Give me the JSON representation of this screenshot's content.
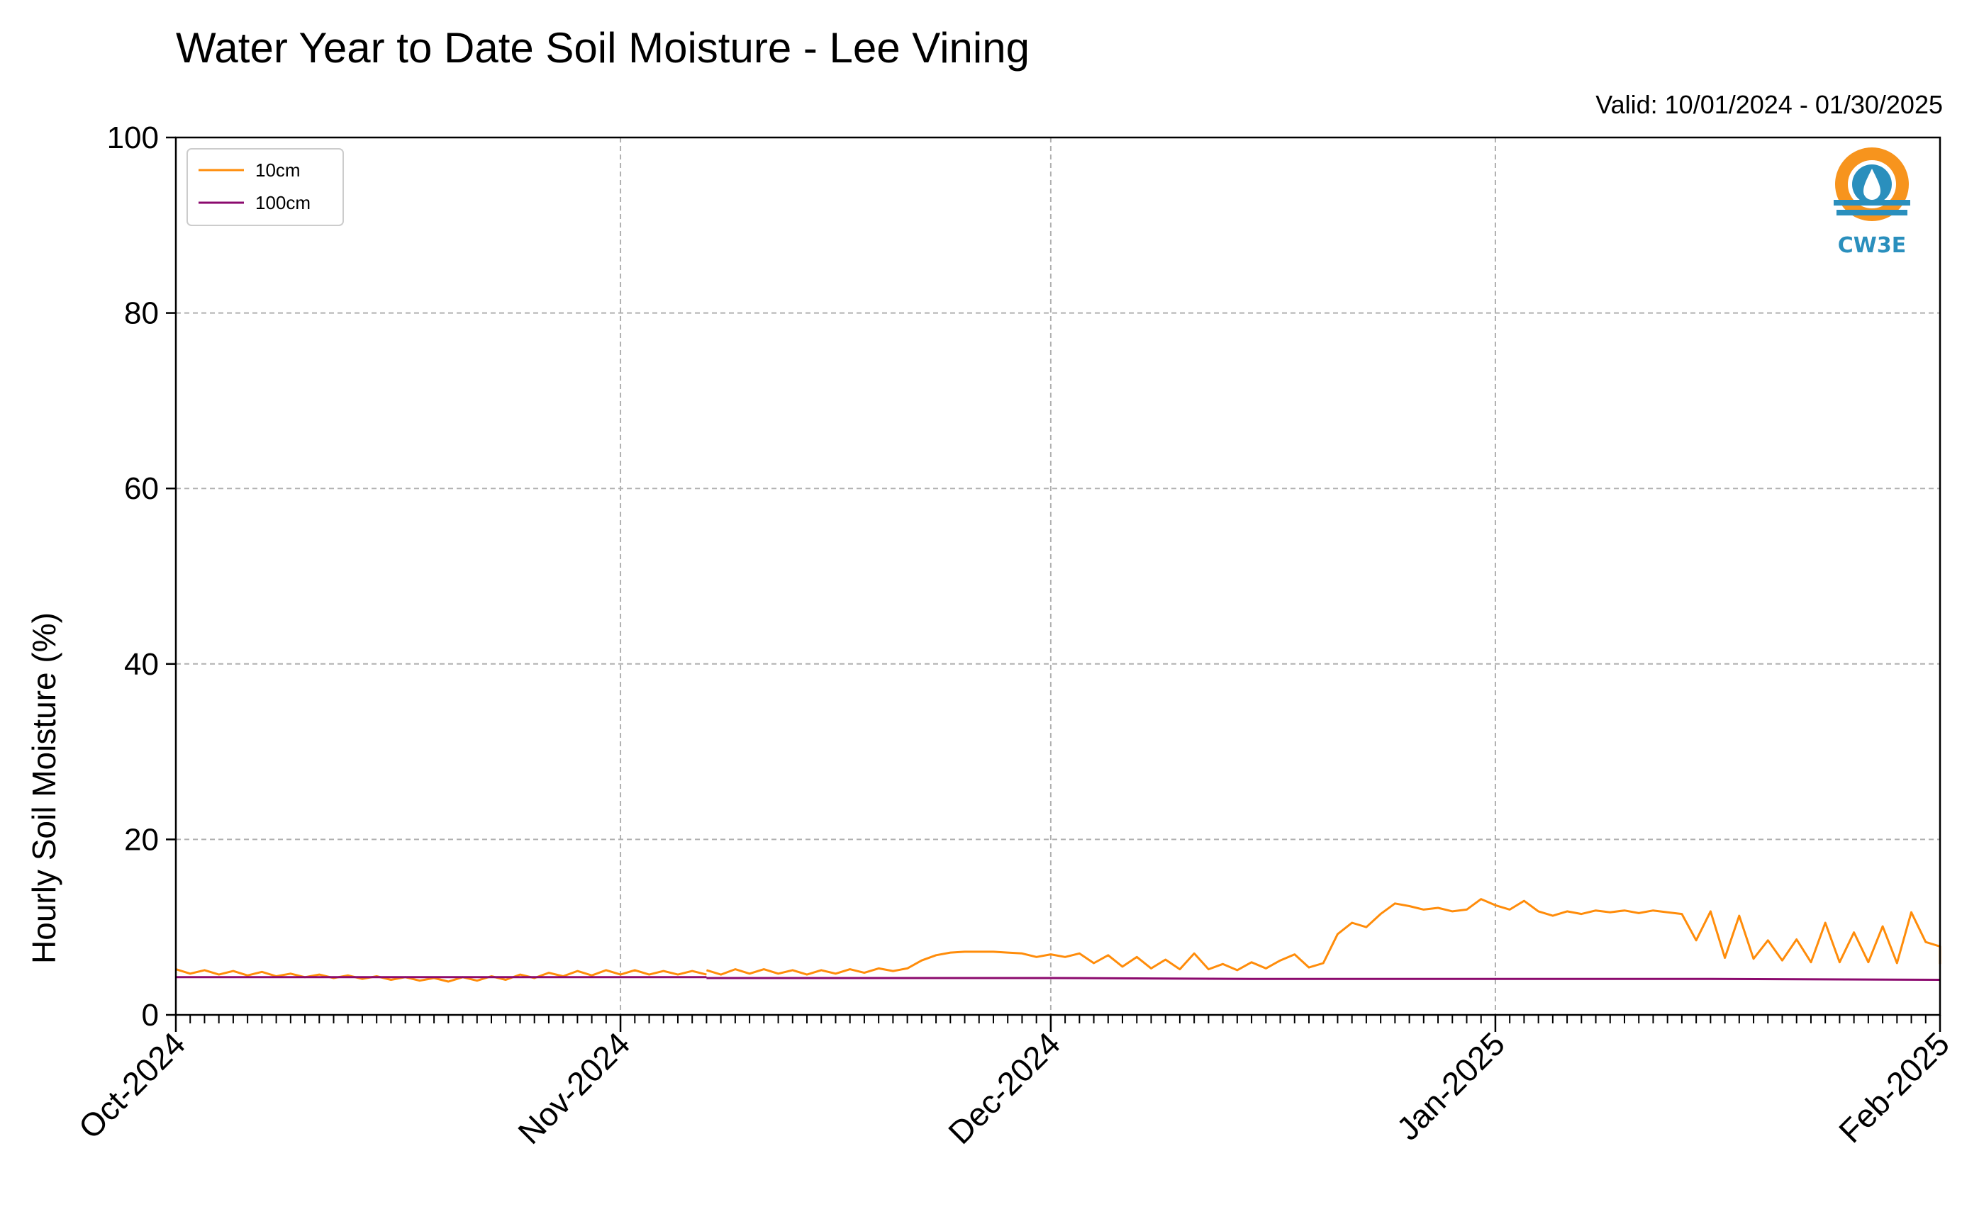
{
  "chart_data": {
    "type": "line",
    "title": "Water Year to Date Soil Moisture - Lee Vining",
    "subtitle": "Valid: 10/01/2024 - 01/30/2025",
    "ylabel": "Hourly Soil Moisture (%)",
    "xlabel": "",
    "x_range": [
      "2024-10-01",
      "2025-02-01"
    ],
    "ylim": [
      0,
      100
    ],
    "yticks": [
      0,
      20,
      40,
      60,
      80,
      100
    ],
    "xticks": [
      {
        "date": "2024-10-01",
        "label": "Oct-2024"
      },
      {
        "date": "2024-11-01",
        "label": "Nov-2024"
      },
      {
        "date": "2024-12-01",
        "label": "Dec-2024"
      },
      {
        "date": "2025-01-01",
        "label": "Jan-2025"
      },
      {
        "date": "2025-02-01",
        "label": "Feb-2025"
      }
    ],
    "grid": true,
    "legend_position": "top-left",
    "logo": {
      "text": "CW3E",
      "position": "top-right"
    },
    "series": [
      {
        "name": "10cm",
        "color": "#ff8c0a",
        "points": [
          [
            "2024-10-01",
            5.2
          ],
          [
            "2024-10-02",
            4.7
          ],
          [
            "2024-10-03",
            5.1
          ],
          [
            "2024-10-04",
            4.6
          ],
          [
            "2024-10-05",
            5.0
          ],
          [
            "2024-10-06",
            4.5
          ],
          [
            "2024-10-07",
            4.9
          ],
          [
            "2024-10-08",
            4.4
          ],
          [
            "2024-10-09",
            4.7
          ],
          [
            "2024-10-10",
            4.3
          ],
          [
            "2024-10-11",
            4.6
          ],
          [
            "2024-10-12",
            4.2
          ],
          [
            "2024-10-13",
            4.5
          ],
          [
            "2024-10-14",
            4.1
          ],
          [
            "2024-10-15",
            4.4
          ],
          [
            "2024-10-16",
            4.0
          ],
          [
            "2024-10-17",
            4.3
          ],
          [
            "2024-10-18",
            3.9
          ],
          [
            "2024-10-19",
            4.2
          ],
          [
            "2024-10-20",
            3.8
          ],
          [
            "2024-10-21",
            4.3
          ],
          [
            "2024-10-22",
            3.9
          ],
          [
            "2024-10-23",
            4.4
          ],
          [
            "2024-10-24",
            4.0
          ],
          [
            "2024-10-25",
            4.6
          ],
          [
            "2024-10-26",
            4.2
          ],
          [
            "2024-10-27",
            4.8
          ],
          [
            "2024-10-28",
            4.4
          ],
          [
            "2024-10-29",
            5.0
          ],
          [
            "2024-10-30",
            4.5
          ],
          [
            "2024-10-31",
            5.1
          ],
          [
            "2024-11-01",
            4.6
          ],
          [
            "2024-11-02",
            5.1
          ],
          [
            "2024-11-03",
            4.6
          ],
          [
            "2024-11-04",
            5.0
          ],
          [
            "2024-11-05",
            4.6
          ],
          [
            "2024-11-06",
            5.0
          ],
          [
            "2024-11-07",
            4.6
          ],
          [
            null,
            null
          ],
          [
            "2024-11-07",
            5.1
          ],
          [
            "2024-11-08",
            4.6
          ],
          [
            "2024-11-09",
            5.2
          ],
          [
            "2024-11-10",
            4.7
          ],
          [
            "2024-11-11",
            5.2
          ],
          [
            "2024-11-12",
            4.7
          ],
          [
            "2024-11-13",
            5.1
          ],
          [
            "2024-11-14",
            4.6
          ],
          [
            "2024-11-15",
            5.1
          ],
          [
            "2024-11-16",
            4.7
          ],
          [
            "2024-11-17",
            5.2
          ],
          [
            "2024-11-18",
            4.8
          ],
          [
            "2024-11-19",
            5.3
          ],
          [
            "2024-11-20",
            5.0
          ],
          [
            "2024-11-21",
            5.3
          ],
          [
            "2024-11-22",
            6.2
          ],
          [
            "2024-11-23",
            6.8
          ],
          [
            "2024-11-24",
            7.1
          ],
          [
            "2024-11-25",
            7.2
          ],
          [
            "2024-11-26",
            7.2
          ],
          [
            "2024-11-27",
            7.2
          ],
          [
            "2024-11-28",
            7.1
          ],
          [
            "2024-11-29",
            7.0
          ],
          [
            "2024-11-30",
            6.6
          ],
          [
            "2024-12-01",
            6.9
          ],
          [
            "2024-12-02",
            6.6
          ],
          [
            "2024-12-03",
            7.0
          ],
          [
            "2024-12-04",
            5.9
          ],
          [
            "2024-12-05",
            6.8
          ],
          [
            "2024-12-06",
            5.5
          ],
          [
            "2024-12-07",
            6.6
          ],
          [
            "2024-12-08",
            5.3
          ],
          [
            "2024-12-09",
            6.3
          ],
          [
            "2024-12-10",
            5.2
          ],
          [
            "2024-12-11",
            7.0
          ],
          [
            "2024-12-12",
            5.2
          ],
          [
            "2024-12-13",
            5.8
          ],
          [
            "2024-12-14",
            5.1
          ],
          [
            "2024-12-15",
            6.0
          ],
          [
            "2024-12-16",
            5.3
          ],
          [
            "2024-12-17",
            6.2
          ],
          [
            "2024-12-18",
            6.9
          ],
          [
            "2024-12-19",
            5.4
          ],
          [
            "2024-12-20",
            5.9
          ],
          [
            "2024-12-21",
            9.2
          ],
          [
            "2024-12-22",
            10.5
          ],
          [
            "2024-12-23",
            10.0
          ],
          [
            "2024-12-24",
            11.5
          ],
          [
            "2024-12-25",
            12.7
          ],
          [
            "2024-12-26",
            12.4
          ],
          [
            "2024-12-27",
            12.0
          ],
          [
            "2024-12-28",
            12.2
          ],
          [
            "2024-12-29",
            11.8
          ],
          [
            "2024-12-30",
            12.0
          ],
          [
            "2024-12-31",
            13.2
          ],
          [
            "2025-01-01",
            12.5
          ],
          [
            "2025-01-02",
            12.0
          ],
          [
            "2025-01-03",
            13.0
          ],
          [
            "2025-01-04",
            11.8
          ],
          [
            "2025-01-05",
            11.3
          ],
          [
            "2025-01-06",
            11.8
          ],
          [
            "2025-01-07",
            11.5
          ],
          [
            "2025-01-08",
            11.9
          ],
          [
            "2025-01-09",
            11.7
          ],
          [
            "2025-01-10",
            11.9
          ],
          [
            "2025-01-11",
            11.6
          ],
          [
            "2025-01-12",
            11.9
          ],
          [
            "2025-01-13",
            11.7
          ],
          [
            "2025-01-14",
            11.5
          ],
          [
            "2025-01-15",
            8.5
          ],
          [
            "2025-01-16",
            11.8
          ],
          [
            "2025-01-17",
            6.5
          ],
          [
            "2025-01-18",
            11.3
          ],
          [
            "2025-01-19",
            6.4
          ],
          [
            "2025-01-20",
            8.5
          ],
          [
            "2025-01-21",
            6.2
          ],
          [
            "2025-01-22",
            8.6
          ],
          [
            "2025-01-23",
            6.0
          ],
          [
            "2025-01-24",
            10.5
          ],
          [
            "2025-01-25",
            6.0
          ],
          [
            "2025-01-26",
            9.4
          ],
          [
            "2025-01-27",
            6.0
          ],
          [
            "2025-01-28",
            10.1
          ],
          [
            "2025-01-29",
            5.9
          ],
          [
            "2025-01-30",
            11.7
          ],
          [
            "2025-01-31",
            8.3
          ],
          [
            "2025-02-01",
            7.8
          ],
          [
            "2025-02-01",
            5.8
          ]
        ]
      },
      {
        "name": "100cm",
        "color": "#8b0a6e",
        "points": [
          [
            "2024-10-01",
            4.3
          ],
          [
            "2024-10-15",
            4.3
          ],
          [
            "2024-11-01",
            4.3
          ],
          [
            "2024-11-07",
            4.3
          ],
          [
            null,
            null
          ],
          [
            "2024-11-07",
            4.2
          ],
          [
            "2024-11-20",
            4.2
          ],
          [
            "2024-12-01",
            4.2
          ],
          [
            "2024-12-15",
            4.1
          ],
          [
            "2025-01-01",
            4.1
          ],
          [
            "2025-01-15",
            4.1
          ],
          [
            "2025-02-01",
            4.0
          ]
        ]
      }
    ]
  }
}
